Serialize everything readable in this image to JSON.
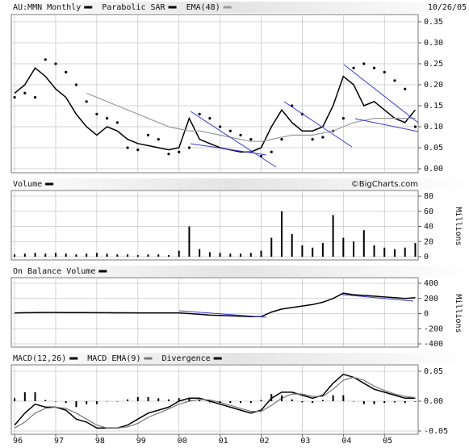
{
  "chart_data": [
    {
      "type": "line",
      "date": "10/26/05",
      "x": [
        1996,
        1996.25,
        1996.5,
        1996.75,
        1997,
        1997.25,
        1997.5,
        1997.75,
        1998,
        1998.25,
        1998.5,
        1998.75,
        1999,
        1999.25,
        1999.5,
        1999.75,
        2000,
        2000.25,
        2000.5,
        2000.75,
        2001,
        2001.25,
        2001.5,
        2001.75,
        2002,
        2002.25,
        2002.5,
        2002.75,
        2003,
        2003.25,
        2003.5,
        2003.75,
        2004,
        2004.25,
        2004.5,
        2004.75,
        2005,
        2005.25,
        2005.5,
        2005.75
      ],
      "xlim": [
        1995.92,
        2005.82
      ],
      "ylim": [
        0,
        0.35
      ],
      "yticks": [
        0.35,
        {
          "value": 0.3,
          "label": "0.30"
        },
        0.25,
        {
          "value": 0.2,
          "label": "0.20"
        },
        0.15,
        {
          "value": 0.1,
          "label": "0.10"
        },
        0.05,
        {
          "value": 0,
          "label": "0.00"
        }
      ],
      "grid": true,
      "series": [
        {
          "name": "AU:MMN Monthly",
          "color": "#000000",
          "style": "line",
          "values": [
            0.18,
            0.2,
            0.24,
            0.22,
            0.19,
            0.17,
            0.13,
            0.1,
            0.08,
            0.1,
            0.09,
            0.07,
            0.06,
            0.055,
            0.05,
            0.045,
            0.05,
            0.12,
            0.07,
            0.06,
            0.05,
            0.045,
            0.04,
            0.04,
            0.05,
            0.1,
            0.14,
            0.11,
            0.09,
            0.09,
            0.1,
            0.15,
            0.22,
            0.2,
            0.15,
            0.16,
            0.14,
            0.12,
            0.11,
            0.14
          ]
        },
        {
          "name": "Parabolic SAR",
          "color": "#000000",
          "style": "dots",
          "values": [
            0.17,
            0.18,
            0.17,
            0.26,
            0.25,
            0.23,
            0.2,
            0.16,
            0.13,
            0.12,
            0.11,
            0.05,
            0.045,
            0.08,
            0.07,
            0.035,
            0.04,
            0.05,
            0.13,
            0.12,
            0.1,
            0.09,
            0.08,
            0.07,
            0.03,
            0.04,
            0.07,
            0.15,
            0.13,
            0.07,
            0.075,
            0.09,
            0.12,
            0.24,
            0.25,
            0.24,
            0.23,
            0.21,
            0.19,
            0.1
          ]
        },
        {
          "name": "EMA(48)",
          "color": "#9a9a9a",
          "style": "line",
          "values": [
            null,
            null,
            null,
            null,
            null,
            null,
            null,
            0.18,
            0.17,
            0.16,
            0.15,
            0.14,
            0.13,
            0.12,
            0.11,
            0.1,
            0.095,
            0.09,
            0.09,
            0.085,
            0.08,
            0.075,
            0.07,
            0.065,
            0.065,
            0.07,
            0.075,
            0.08,
            0.08,
            0.08,
            0.085,
            0.09,
            0.1,
            0.11,
            0.115,
            0.12,
            0.12,
            0.12,
            0.12,
            0.12
          ]
        }
      ]
    },
    {
      "type": "bar",
      "credit": "©BigCharts.com",
      "ylabel": "Millions",
      "x": [
        1996,
        1996.25,
        1996.5,
        1996.75,
        1997,
        1997.25,
        1997.5,
        1997.75,
        1998,
        1998.25,
        1998.5,
        1998.75,
        1999,
        1999.25,
        1999.5,
        1999.75,
        2000,
        2000.25,
        2000.5,
        2000.75,
        2001,
        2001.25,
        2001.5,
        2001.75,
        2002,
        2002.25,
        2002.5,
        2002.75,
        2003,
        2003.25,
        2003.5,
        2003.75,
        2004,
        2004.25,
        2004.5,
        2004.75,
        2005,
        2005.25,
        2005.5,
        2005.75
      ],
      "xlim": [
        1995.92,
        2005.82
      ],
      "ylim": [
        0,
        80
      ],
      "yticks": [
        80,
        60,
        40,
        20,
        0
      ],
      "grid": true,
      "series": [
        {
          "name": "Volume",
          "color": "#000000",
          "style": "bars",
          "values": [
            3,
            4,
            5,
            4,
            5,
            4,
            3,
            4,
            5,
            4,
            3,
            3,
            2,
            3,
            3,
            2,
            8,
            40,
            10,
            6,
            5,
            4,
            4,
            5,
            8,
            25,
            60,
            30,
            15,
            12,
            18,
            55,
            25,
            20,
            35,
            15,
            12,
            10,
            12,
            18
          ]
        }
      ]
    },
    {
      "type": "line",
      "ylabel": "Millions",
      "x": [
        1996,
        1996.25,
        1996.5,
        1996.75,
        1997,
        1997.25,
        1997.5,
        1997.75,
        1998,
        1998.25,
        1998.5,
        1998.75,
        1999,
        1999.25,
        1999.5,
        1999.75,
        2000,
        2000.25,
        2000.5,
        2000.75,
        2001,
        2001.25,
        2001.5,
        2001.75,
        2002,
        2002.25,
        2002.5,
        2002.75,
        2003,
        2003.25,
        2003.5,
        2003.75,
        2004,
        2004.25,
        2004.5,
        2004.75,
        2005,
        2005.25,
        2005.5,
        2005.75
      ],
      "xlim": [
        1995.92,
        2005.82
      ],
      "ylim": [
        -400,
        400
      ],
      "yticks": [
        400,
        200,
        0,
        -200,
        -400
      ],
      "grid": true,
      "series": [
        {
          "name": "On Balance Volume",
          "color": "#000000",
          "style": "line",
          "values": [
            10,
            12,
            14,
            15,
            15,
            14,
            13,
            13,
            12,
            12,
            11,
            11,
            10,
            10,
            10,
            10,
            10,
            0,
            -10,
            -20,
            -25,
            -30,
            -35,
            -40,
            -40,
            20,
            60,
            80,
            100,
            120,
            150,
            200,
            270,
            250,
            240,
            230,
            220,
            210,
            200,
            210
          ]
        }
      ]
    },
    {
      "type": "line",
      "x": [
        1996,
        1996.25,
        1996.5,
        1996.75,
        1997,
        1997.25,
        1997.5,
        1997.75,
        1998,
        1998.25,
        1998.5,
        1998.75,
        1999,
        1999.25,
        1999.5,
        1999.75,
        2000,
        2000.25,
        2000.5,
        2000.75,
        2001,
        2001.25,
        2001.5,
        2001.75,
        2002,
        2002.25,
        2002.5,
        2002.75,
        2003,
        2003.25,
        2003.5,
        2003.75,
        2004,
        2004.25,
        2004.5,
        2004.75,
        2005,
        2005.25,
        2005.5,
        2005.75
      ],
      "xlim": [
        1995.92,
        2005.82
      ],
      "xticks": [
        {
          "value": 1996,
          "label": "96"
        },
        {
          "value": 1997,
          "label": "97"
        },
        {
          "value": 1998,
          "label": "98"
        },
        {
          "value": 1999,
          "label": "99"
        },
        {
          "value": 2000,
          "label": "00"
        },
        {
          "value": 2001,
          "label": "01"
        },
        {
          "value": 2002,
          "label": "02"
        },
        {
          "value": 2003,
          "label": "03"
        },
        {
          "value": 2004,
          "label": "04"
        },
        {
          "value": 2005,
          "label": "05"
        }
      ],
      "ylim": [
        -0.05,
        0.05
      ],
      "yticks": [
        0.05,
        {
          "value": 0,
          "label": "0.00"
        },
        -0.05
      ],
      "grid": true,
      "series": [
        {
          "name": "MACD(12,26)",
          "color": "#000000",
          "style": "line",
          "values": [
            -0.04,
            -0.02,
            -0.005,
            -0.01,
            -0.01,
            -0.015,
            -0.03,
            -0.035,
            -0.045,
            -0.045,
            -0.045,
            -0.04,
            -0.03,
            -0.02,
            -0.015,
            -0.01,
            0,
            0.005,
            0.005,
            0,
            -0.005,
            -0.01,
            -0.015,
            -0.02,
            -0.015,
            0.005,
            0.015,
            0.015,
            0.01,
            0.005,
            0.01,
            0.03,
            0.045,
            0.04,
            0.03,
            0.02,
            0.015,
            0.01,
            0.005,
            0.005
          ]
        },
        {
          "name": "MACD EMA(9)",
          "color": "#777777",
          "style": "line",
          "values": [
            -0.045,
            -0.035,
            -0.02,
            -0.012,
            -0.01,
            -0.012,
            -0.02,
            -0.03,
            -0.04,
            -0.045,
            -0.045,
            -0.043,
            -0.037,
            -0.027,
            -0.02,
            -0.013,
            -0.005,
            0,
            0.003,
            0.002,
            -0.002,
            -0.007,
            -0.012,
            -0.017,
            -0.017,
            -0.007,
            0.005,
            0.012,
            0.012,
            0.008,
            0.008,
            0.02,
            0.035,
            0.04,
            0.035,
            0.025,
            0.018,
            0.012,
            0.008,
            0.006
          ]
        },
        {
          "name": "Divergence",
          "color": "#000000",
          "style": "bars",
          "values": [
            0.005,
            0.015,
            0.015,
            0.002,
            0,
            -0.003,
            -0.01,
            -0.005,
            -0.005,
            0,
            0,
            0.003,
            0.007,
            0.007,
            0.005,
            0.003,
            0.005,
            0.005,
            0.002,
            -0.002,
            -0.003,
            -0.003,
            -0.003,
            -0.003,
            0.002,
            0.012,
            0.01,
            0.003,
            -0.002,
            -0.003,
            0.002,
            0.01,
            0.01,
            0,
            -0.005,
            -0.005,
            -0.003,
            -0.002,
            -0.003,
            -0.001
          ]
        }
      ]
    }
  ]
}
